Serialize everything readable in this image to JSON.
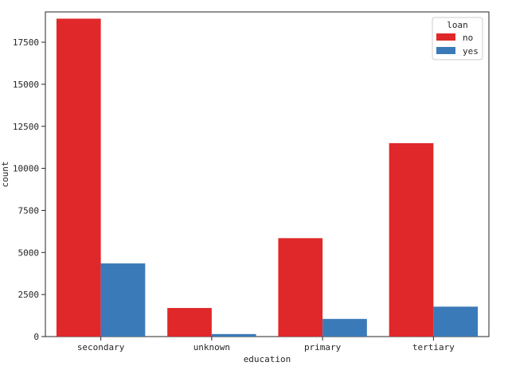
{
  "chart_data": {
    "type": "bar",
    "xlabel": "education",
    "ylabel": "count",
    "categories": [
      "secondary",
      "unknown",
      "primary",
      "tertiary"
    ],
    "series": [
      {
        "name": "no",
        "color": "#e0282a",
        "values": [
          18900,
          1700,
          5850,
          11500
        ]
      },
      {
        "name": "yes",
        "color": "#3b7ab8",
        "values": [
          4350,
          150,
          1050,
          1780
        ]
      }
    ],
    "ylim": [
      0,
      19300
    ],
    "yticks": [
      0,
      2500,
      5000,
      7500,
      10000,
      12500,
      15000,
      17500
    ],
    "legend": {
      "title": "loan",
      "placement": "top-right"
    },
    "grid": false
  }
}
